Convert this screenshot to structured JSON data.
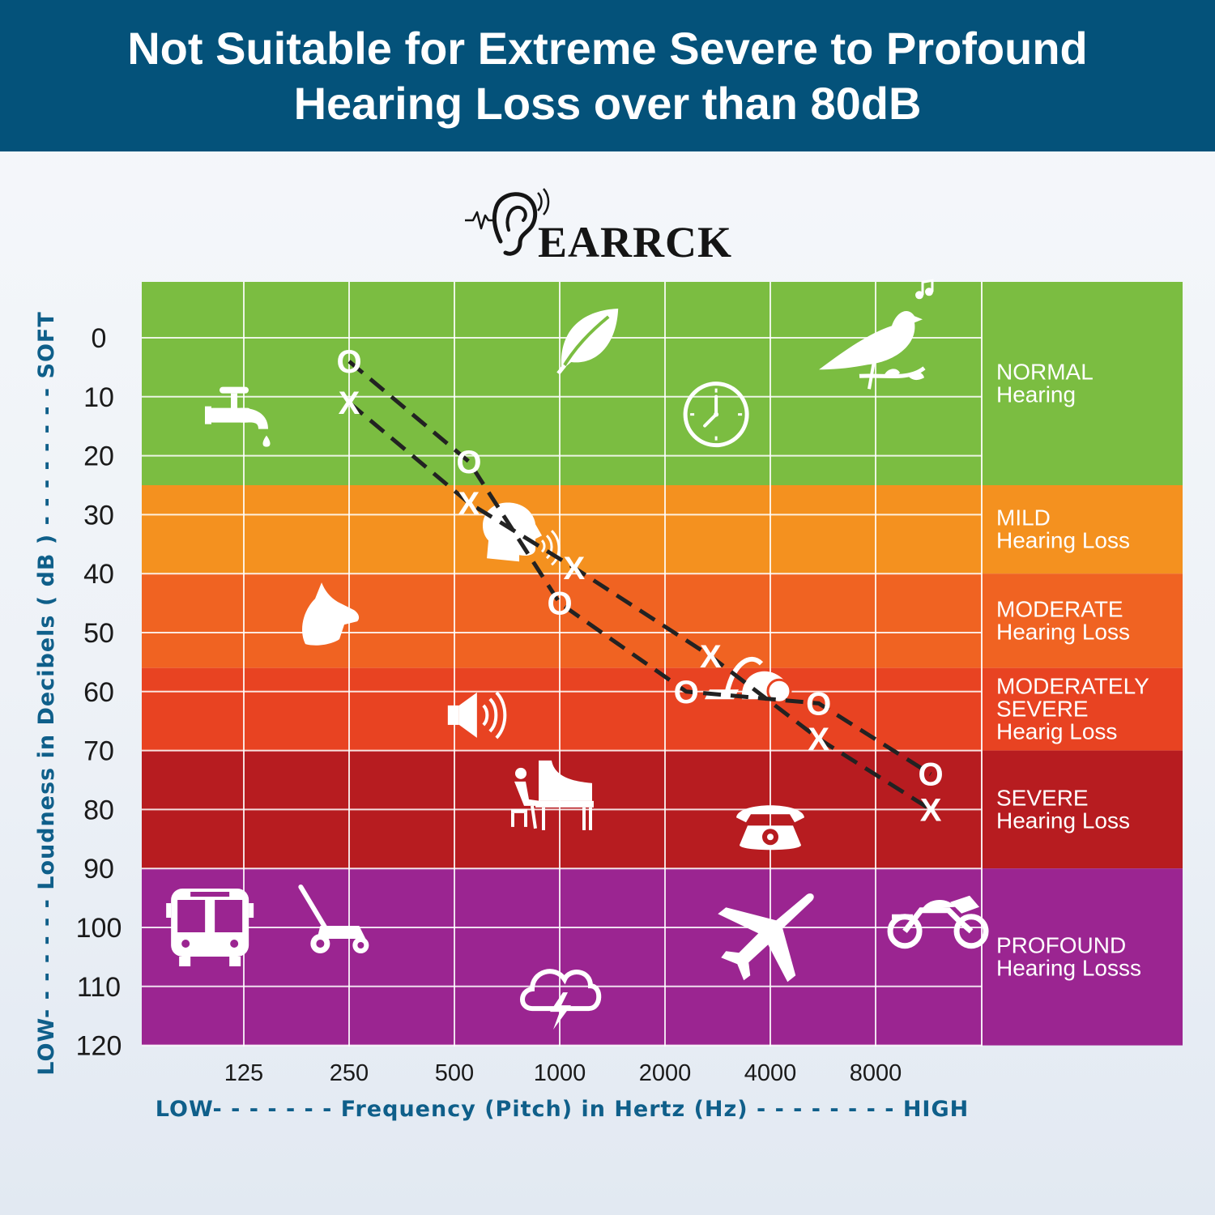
{
  "banner": {
    "line1": "Not Suitable for Extreme Severe to Profound",
    "line2": "Hearing Loss over than 80dB"
  },
  "brand": {
    "name": "EARRCK"
  },
  "colors": {
    "banner": "#04527a",
    "normal": "#7bbd41",
    "mild": "#f4911f",
    "moderate": "#f06322",
    "moderately_severe": "#e84322",
    "severe": "#b71c20",
    "profound": "#9b2591",
    "axis_text": "#0f5f8a",
    "lines": "#222222"
  },
  "chart_data": {
    "type": "line",
    "xlabel": "LOW- - - - - - - Frequency (Pitch) in Hertz (Hz) - - - - - - - - HIGH",
    "ylabel": "LOW- - - - - - - Loudness in Decibels ( dB ) - - - - - - - - SOFT",
    "x_ticks": [
      "125",
      "250",
      "500",
      "1000",
      "2000",
      "4000",
      "8000"
    ],
    "y_ticks": [
      "0",
      "10",
      "20",
      "30",
      "40",
      "50",
      "60",
      "70",
      "80",
      "90",
      "100",
      "110",
      "120"
    ],
    "ylim": [
      0,
      120
    ],
    "y_inverted": true,
    "x_scale": "log2",
    "grid": true,
    "bands": [
      {
        "label1": "NORMAL",
        "label2": "Hearing",
        "from": -10,
        "to": 25,
        "color": "#7bbd41"
      },
      {
        "label1": "MILD",
        "label2": "Hearing Loss",
        "from": 25,
        "to": 40,
        "color": "#f4911f"
      },
      {
        "label1": "MODERATE",
        "label2": "Hearing Loss",
        "from": 40,
        "to": 56,
        "color": "#f06322"
      },
      {
        "label1": "MODERATELY",
        "label2": "SEVERE",
        "label3": "Hearig Loss",
        "from": 56,
        "to": 70,
        "color": "#e84322"
      },
      {
        "label1": "SEVERE",
        "label2": "Hearing Loss",
        "from": 70,
        "to": 90,
        "color": "#b71c20"
      },
      {
        "label1": "PROFOUND",
        "label2": "Hearing Losss",
        "from": 90,
        "to": 120,
        "color": "#9b2591"
      }
    ],
    "series": [
      {
        "marker": "O",
        "x": [
          250,
          550,
          1000,
          2300,
          5500,
          11500
        ],
        "y": [
          4,
          21,
          45,
          60,
          62,
          74
        ]
      },
      {
        "marker": "X",
        "x": [
          250,
          550,
          1100,
          2700,
          5500,
          11500
        ],
        "y": [
          11,
          28,
          39,
          54,
          68,
          80
        ]
      }
    ],
    "icons": [
      {
        "name": "faucet-icon",
        "x": 125,
        "y": 13
      },
      {
        "name": "leaf-icon",
        "x": 1200,
        "y": 0
      },
      {
        "name": "bird-icon",
        "x": 8000,
        "y": 1
      },
      {
        "name": "clock-icon",
        "x": 2800,
        "y": 13
      },
      {
        "name": "talking-head-icon",
        "x": 750,
        "y": 33
      },
      {
        "name": "dog-icon",
        "x": 220,
        "y": 47
      },
      {
        "name": "speaker-icon",
        "x": 580,
        "y": 64
      },
      {
        "name": "vacuum-icon",
        "x": 3500,
        "y": 58
      },
      {
        "name": "piano-icon",
        "x": 1000,
        "y": 78
      },
      {
        "name": "telephone-icon",
        "x": 4000,
        "y": 83
      },
      {
        "name": "bus-icon",
        "x": 100,
        "y": 100
      },
      {
        "name": "lawnmower-icon",
        "x": 230,
        "y": 100
      },
      {
        "name": "airplane-icon",
        "x": 3900,
        "y": 101
      },
      {
        "name": "motorcycle-icon",
        "x": 12000,
        "y": 99
      },
      {
        "name": "storm-cloud-icon",
        "x": 1000,
        "y": 111
      }
    ]
  }
}
